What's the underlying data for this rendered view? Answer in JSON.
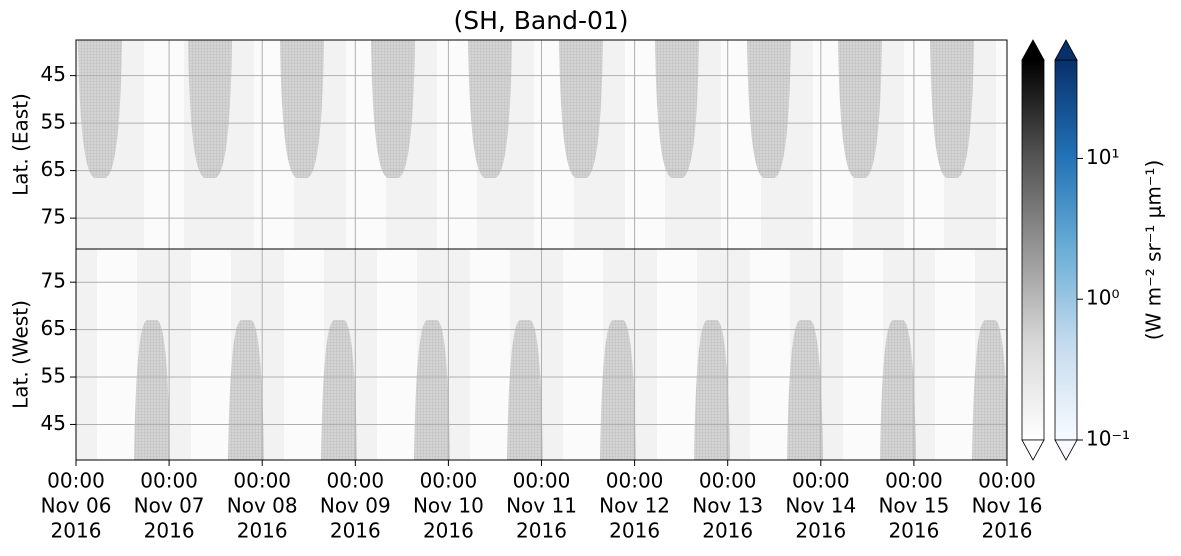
{
  "chart_data": {
    "type": "heatmap",
    "title": "(SH, Band-01)",
    "xlim": [
      "2016-11-06T00:00Z",
      "2016-11-16T00:00Z"
    ],
    "xticks": [
      {
        "value": "2016-11-06T00:00Z",
        "label": [
          "00:00",
          "Nov 06",
          "2016"
        ]
      },
      {
        "value": "2016-11-07T00:00Z",
        "label": [
          "00:00",
          "Nov 07",
          "2016"
        ]
      },
      {
        "value": "2016-11-08T00:00Z",
        "label": [
          "00:00",
          "Nov 08",
          "2016"
        ]
      },
      {
        "value": "2016-11-09T00:00Z",
        "label": [
          "00:00",
          "Nov 09",
          "2016"
        ]
      },
      {
        "value": "2016-11-10T00:00Z",
        "label": [
          "00:00",
          "Nov 10",
          "2016"
        ]
      },
      {
        "value": "2016-11-11T00:00Z",
        "label": [
          "00:00",
          "Nov 11",
          "2016"
        ]
      },
      {
        "value": "2016-11-12T00:00Z",
        "label": [
          "00:00",
          "Nov 12",
          "2016"
        ]
      },
      {
        "value": "2016-11-13T00:00Z",
        "label": [
          "00:00",
          "Nov 13",
          "2016"
        ]
      },
      {
        "value": "2016-11-14T00:00Z",
        "label": [
          "00:00",
          "Nov 14",
          "2016"
        ]
      },
      {
        "value": "2016-11-15T00:00Z",
        "label": [
          "00:00",
          "Nov 15",
          "2016"
        ]
      },
      {
        "value": "2016-11-16T00:00Z",
        "label": [
          "00:00",
          "Nov 16",
          "2016"
        ]
      }
    ],
    "grid": true,
    "panels": [
      {
        "ylabel": "Lat. (East)",
        "ylim": [
          37.5,
          81.5
        ],
        "yticks": [
          45,
          55,
          65,
          75
        ]
      },
      {
        "ylabel": "Lat. (West)",
        "ylim": [
          82,
          37.5
        ],
        "yticks": [
          75,
          65,
          55,
          45
        ]
      }
    ],
    "colorbar_label": "(W m⁻² sr⁻¹ μm⁻¹)",
    "colorbars": [
      {
        "colors": [
          "#ffffff",
          "#d9d9d9",
          "#969696",
          "#525252",
          "#000000"
        ],
        "lim": [
          0.1,
          50
        ],
        "log": true,
        "extend": "both"
      },
      {
        "colors": [
          "#f7fbff",
          "#c6dbef",
          "#6baed6",
          "#2171b5",
          "#08306b"
        ],
        "lim": [
          0.1,
          50
        ],
        "log": true,
        "extend": "both",
        "ticks": [
          {
            "value": 0.1,
            "label": "10⁻¹"
          },
          {
            "value": 1,
            "label": "10⁰"
          },
          {
            "value": 10,
            "label": "10¹"
          }
        ]
      }
    ]
  }
}
